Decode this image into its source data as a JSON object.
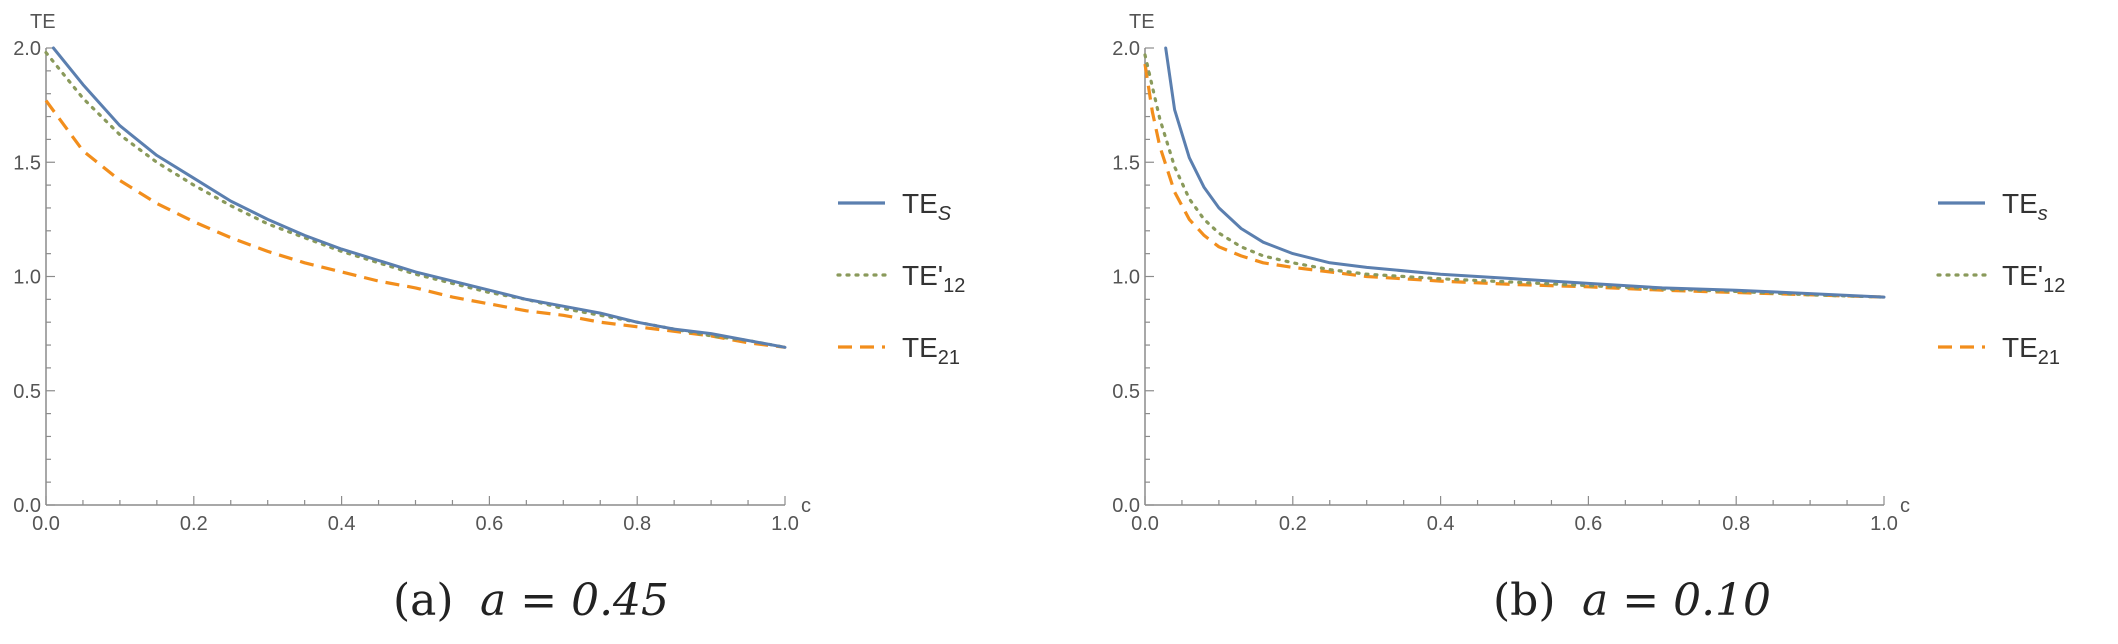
{
  "figure": {
    "panels": [
      {
        "caption_label": "(a)",
        "caption_eq": "a = 0.45"
      },
      {
        "caption_label": "(b)",
        "caption_eq": "a = 0.10"
      }
    ]
  },
  "chart_data": [
    {
      "type": "line",
      "xlabel": "c",
      "ylabel": "TE",
      "xlim": [
        0.0,
        1.0
      ],
      "ylim": [
        0.0,
        2.0
      ],
      "x_ticks": [
        "0.0",
        "0.2",
        "0.4",
        "0.6",
        "0.8",
        "1.0"
      ],
      "y_ticks": [
        "0.0",
        "0.5",
        "1.0",
        "1.5",
        "2.0"
      ],
      "grid": false,
      "legend_position": "right",
      "series": [
        {
          "name": "TE_S",
          "name_main": "TE",
          "name_sub": "S",
          "sub_italic": true,
          "color": "#5b7faf",
          "style": "solid",
          "x": [
            0.01,
            0.05,
            0.1,
            0.15,
            0.2,
            0.25,
            0.3,
            0.35,
            0.4,
            0.45,
            0.5,
            0.55,
            0.6,
            0.65,
            0.7,
            0.75,
            0.8,
            0.85,
            0.9,
            0.95,
            1.0
          ],
          "y": [
            2.0,
            1.84,
            1.66,
            1.53,
            1.43,
            1.33,
            1.25,
            1.18,
            1.12,
            1.07,
            1.02,
            0.98,
            0.94,
            0.9,
            0.87,
            0.84,
            0.8,
            0.77,
            0.75,
            0.72,
            0.69
          ]
        },
        {
          "name": "TE'12",
          "name_main": "TE'",
          "name_sub": "12",
          "sub_italic": false,
          "color": "#8a9a5b",
          "style": "dotted",
          "x": [
            0.0,
            0.05,
            0.1,
            0.15,
            0.2,
            0.25,
            0.3,
            0.35,
            0.4,
            0.45,
            0.5,
            0.55,
            0.6,
            0.65,
            0.7,
            0.75,
            0.8,
            0.85,
            0.9,
            0.95,
            1.0
          ],
          "y": [
            1.98,
            1.78,
            1.62,
            1.5,
            1.4,
            1.31,
            1.23,
            1.17,
            1.11,
            1.06,
            1.01,
            0.97,
            0.93,
            0.9,
            0.86,
            0.83,
            0.8,
            0.77,
            0.74,
            0.72,
            0.69
          ]
        },
        {
          "name": "TE21",
          "name_main": "TE",
          "name_sub": "21",
          "sub_italic": false,
          "color": "#f28e1c",
          "style": "dashed",
          "x": [
            0.0,
            0.05,
            0.1,
            0.15,
            0.2,
            0.25,
            0.3,
            0.35,
            0.4,
            0.45,
            0.5,
            0.55,
            0.6,
            0.65,
            0.7,
            0.75,
            0.8,
            0.85,
            0.9,
            0.95,
            1.0
          ],
          "y": [
            1.77,
            1.55,
            1.42,
            1.32,
            1.24,
            1.17,
            1.11,
            1.06,
            1.02,
            0.98,
            0.95,
            0.91,
            0.88,
            0.85,
            0.83,
            0.8,
            0.78,
            0.76,
            0.74,
            0.71,
            0.69
          ]
        }
      ]
    },
    {
      "type": "line",
      "xlabel": "c",
      "ylabel": "TE",
      "xlim": [
        0.0,
        1.0
      ],
      "ylim": [
        0.0,
        2.0
      ],
      "x_ticks": [
        "0.0",
        "0.2",
        "0.4",
        "0.6",
        "0.8",
        "1.0"
      ],
      "y_ticks": [
        "0.0",
        "0.5",
        "1.0",
        "1.5",
        "2.0"
      ],
      "grid": false,
      "legend_position": "right",
      "series": [
        {
          "name": "TE_s",
          "name_main": "TE",
          "name_sub": "s",
          "sub_italic": true,
          "color": "#5b7faf",
          "style": "solid",
          "x": [
            0.028,
            0.04,
            0.06,
            0.08,
            0.1,
            0.13,
            0.16,
            0.2,
            0.25,
            0.3,
            0.4,
            0.5,
            0.6,
            0.7,
            0.8,
            0.9,
            1.0
          ],
          "y": [
            2.0,
            1.73,
            1.52,
            1.39,
            1.3,
            1.21,
            1.15,
            1.1,
            1.06,
            1.04,
            1.01,
            0.99,
            0.97,
            0.95,
            0.94,
            0.925,
            0.91
          ]
        },
        {
          "name": "TE'12",
          "name_main": "TE'",
          "name_sub": "12",
          "sub_italic": false,
          "color": "#8a9a5b",
          "style": "dotted",
          "x": [
            0.0,
            0.01,
            0.02,
            0.04,
            0.06,
            0.08,
            0.1,
            0.13,
            0.16,
            0.2,
            0.25,
            0.3,
            0.4,
            0.5,
            0.6,
            0.7,
            0.8,
            0.9,
            1.0
          ],
          "y": [
            1.97,
            1.83,
            1.69,
            1.48,
            1.34,
            1.25,
            1.19,
            1.13,
            1.09,
            1.06,
            1.03,
            1.01,
            0.99,
            0.975,
            0.96,
            0.945,
            0.935,
            0.92,
            0.91
          ]
        },
        {
          "name": "TE21",
          "name_main": "TE",
          "name_sub": "21",
          "sub_italic": false,
          "color": "#f28e1c",
          "style": "dashed",
          "x": [
            0.0,
            0.01,
            0.02,
            0.04,
            0.06,
            0.08,
            0.1,
            0.13,
            0.16,
            0.2,
            0.25,
            0.3,
            0.4,
            0.5,
            0.6,
            0.7,
            0.8,
            0.9,
            1.0
          ],
          "y": [
            1.93,
            1.72,
            1.57,
            1.37,
            1.25,
            1.18,
            1.13,
            1.09,
            1.06,
            1.04,
            1.02,
            1.0,
            0.98,
            0.965,
            0.955,
            0.94,
            0.93,
            0.92,
            0.91
          ]
        }
      ]
    }
  ]
}
